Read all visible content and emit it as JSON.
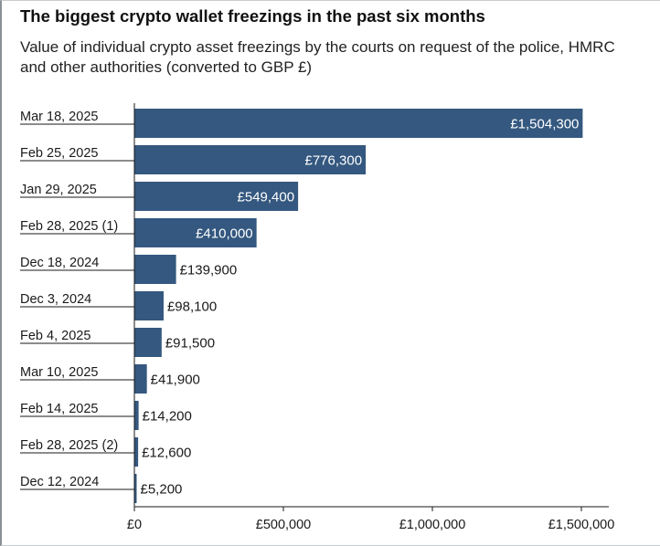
{
  "chart_data": {
    "type": "bar",
    "orientation": "horizontal",
    "title": "The biggest crypto wallet freezings in the past six months",
    "subtitle": "Value of individual crypto asset freezings by the courts on request of the police, HMRC and other authorities (converted to GBP £)",
    "categories": [
      "Mar 18, 2025",
      "Feb 25, 2025",
      "Jan 29, 2025",
      "Feb 28, 2025 (1)",
      "Dec 18, 2024",
      "Dec 3, 2024",
      "Feb 4, 2025",
      "Mar 10, 2025",
      "Feb 14, 2025",
      "Feb 28, 2025 (2)",
      "Dec 12, 2024"
    ],
    "values": [
      1504300,
      776300,
      549400,
      410000,
      139900,
      98100,
      91500,
      41900,
      14200,
      12600,
      5200
    ],
    "value_labels": [
      "£1,504,300",
      "£776,300",
      "£549,400",
      "£410,000",
      "£139,900",
      "£98,100",
      "£91,500",
      "£41,900",
      "£14,200",
      "£12,600",
      "£5,200"
    ],
    "x_ticks": [
      0,
      500000,
      1000000,
      1500000
    ],
    "x_tick_labels": [
      "£0",
      "£500,000",
      "£1,000,000",
      "£1,500,000"
    ],
    "xlim": [
      0,
      1600000
    ],
    "xlabel": "",
    "ylabel": "",
    "grid": false,
    "legend": "none",
    "bar_color": "#34587f",
    "label_inside_color": "#ffffff",
    "label_outside_color": "#1a1a1a"
  }
}
